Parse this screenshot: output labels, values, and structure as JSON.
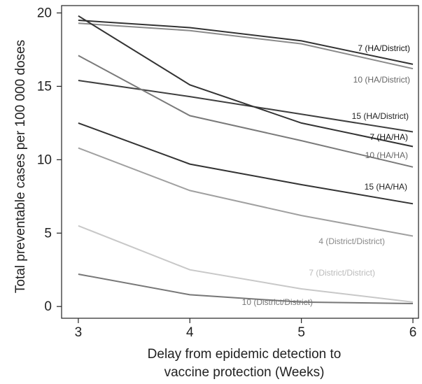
{
  "chart_data": {
    "type": "line",
    "title": "",
    "xlabel_lines": [
      "Delay from epidemic detection to",
      "vaccine protection (Weeks)"
    ],
    "ylabel": "Total preventable cases per 100 000 doses",
    "x": [
      3,
      4,
      5,
      6
    ],
    "xlim": [
      2.85,
      6.05
    ],
    "ylim": [
      -0.8,
      20.5
    ],
    "x_ticks": [
      "3",
      "4",
      "5",
      "6"
    ],
    "y_ticks": [
      "0",
      "5",
      "10",
      "15",
      "20"
    ],
    "grid": false,
    "legend": "inline labels at line ends",
    "series": [
      {
        "name": "7 (HA/District)",
        "values": [
          19.5,
          19.0,
          18.1,
          16.5
        ],
        "color": "#333333",
        "label_color": "#111111"
      },
      {
        "name": "10 (HA/District)",
        "values": [
          19.3,
          18.8,
          17.9,
          16.2
        ],
        "color": "#8a8a8a",
        "label_color": "#666666"
      },
      {
        "name": "15 (HA/District)",
        "values": [
          15.4,
          14.3,
          13.1,
          11.9
        ],
        "color": "#3f3f3f",
        "label_color": "#222222"
      },
      {
        "name": "7 (HA/HA)",
        "values": [
          19.8,
          15.1,
          12.5,
          10.9
        ],
        "color": "#333333",
        "label_color": "#111111"
      },
      {
        "name": "10 (HA/HA)",
        "values": [
          17.1,
          13.0,
          11.3,
          9.5
        ],
        "color": "#7a7a7a",
        "label_color": "#666666"
      },
      {
        "name": "15 (HA/HA)",
        "values": [
          12.5,
          9.7,
          8.3,
          7.0
        ],
        "color": "#333333",
        "label_color": "#222222"
      },
      {
        "name": "4 (District/District)",
        "values": [
          10.8,
          7.9,
          6.2,
          4.8
        ],
        "color": "#a0a0a0",
        "label_color": "#888888"
      },
      {
        "name": "7 (District/District)",
        "values": [
          5.5,
          2.5,
          1.2,
          0.3
        ],
        "color": "#c8c8c8",
        "label_color": "#bbbbbb"
      },
      {
        "name": "10 (District/District)",
        "values": [
          2.2,
          0.8,
          0.3,
          0.2
        ],
        "color": "#777777",
        "label_color": "#777777"
      }
    ]
  }
}
